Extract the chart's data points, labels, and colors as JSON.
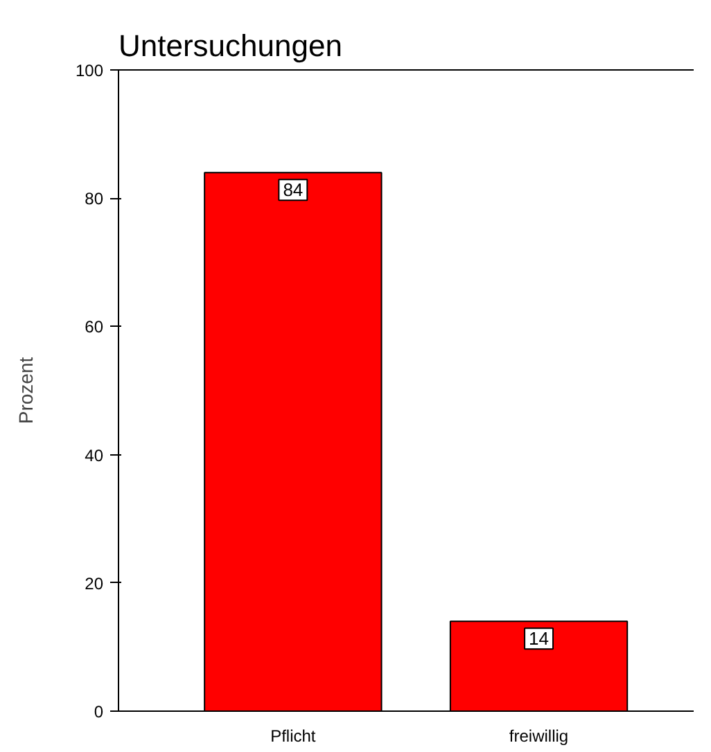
{
  "chart_data": {
    "type": "bar",
    "title": "Untersuchungen",
    "ylabel": "Prozent",
    "categories": [
      "Pflicht",
      "freiwillig"
    ],
    "values": [
      84,
      14
    ],
    "color": "#ff0000",
    "ylim": [
      0,
      100
    ],
    "yticks": [
      0,
      20,
      40,
      60,
      80,
      100
    ],
    "grid": false,
    "data_labels": true
  }
}
